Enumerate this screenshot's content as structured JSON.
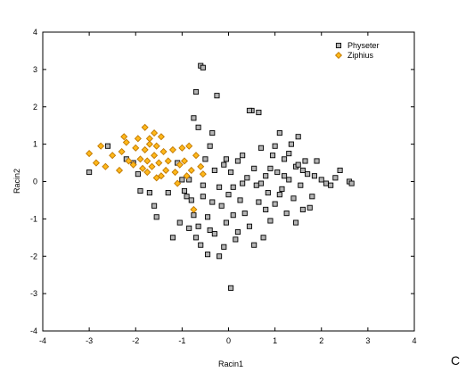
{
  "panel_letter": "C",
  "chart_data": {
    "type": "scatter",
    "xlabel": "Racin1",
    "ylabel": "Racin2",
    "xlim": [
      -4,
      4
    ],
    "ylim": [
      -4,
      4
    ],
    "xticks": [
      "-4",
      "-3",
      "-2",
      "-1",
      "0",
      "1",
      "2",
      "3",
      "4"
    ],
    "yticks": [
      "-4",
      "-3",
      "-2",
      "-1",
      "0",
      "1",
      "2",
      "3",
      "4"
    ],
    "grid": false,
    "legend_position": "top-right",
    "series": [
      {
        "name": "Physeter",
        "marker": "square",
        "fill": "#b4b4b4",
        "stroke": "#000000",
        "points": [
          [
            -3.0,
            0.25
          ],
          [
            -2.6,
            0.95
          ],
          [
            -2.2,
            0.6
          ],
          [
            -2.05,
            0.5
          ],
          [
            -1.95,
            0.2
          ],
          [
            -1.9,
            -0.25
          ],
          [
            -1.7,
            -0.3
          ],
          [
            -1.6,
            -0.65
          ],
          [
            -1.55,
            -0.95
          ],
          [
            -1.3,
            -0.3
          ],
          [
            -1.2,
            -1.5
          ],
          [
            -1.1,
            0.5
          ],
          [
            -1.0,
            0.05
          ],
          [
            -0.9,
            -0.4
          ],
          [
            -0.85,
            -1.25
          ],
          [
            -0.8,
            -0.5
          ],
          [
            -0.75,
            1.7
          ],
          [
            -0.75,
            -0.9
          ],
          [
            -0.7,
            2.4
          ],
          [
            -0.7,
            -1.5
          ],
          [
            -0.65,
            1.45
          ],
          [
            -0.6,
            -1.7
          ],
          [
            -0.55,
            -0.4
          ],
          [
            -0.5,
            0.6
          ],
          [
            -0.45,
            -0.95
          ],
          [
            -0.4,
            0.95
          ],
          [
            -0.4,
            -1.3
          ],
          [
            -0.35,
            1.3
          ],
          [
            -0.3,
            0.3
          ],
          [
            -0.3,
            -1.4
          ],
          [
            -0.25,
            2.3
          ],
          [
            -0.2,
            -2.0
          ],
          [
            -0.15,
            -0.65
          ],
          [
            -0.1,
            0.45
          ],
          [
            -0.1,
            -1.75
          ],
          [
            -0.05,
            -1.1
          ],
          [
            0.0,
            -0.35
          ],
          [
            0.05,
            0.25
          ],
          [
            0.1,
            -0.15
          ],
          [
            0.15,
            -1.55
          ],
          [
            0.2,
            0.55
          ],
          [
            0.25,
            -0.5
          ],
          [
            0.3,
            -0.05
          ],
          [
            0.35,
            -0.85
          ],
          [
            0.4,
            0.1
          ],
          [
            0.45,
            -1.2
          ],
          [
            0.5,
            1.9
          ],
          [
            0.55,
            0.35
          ],
          [
            0.6,
            -0.1
          ],
          [
            0.65,
            -0.55
          ],
          [
            0.7,
            0.9
          ],
          [
            0.75,
            -1.5
          ],
          [
            0.8,
            0.15
          ],
          [
            0.85,
            -0.3
          ],
          [
            0.9,
            -1.05
          ],
          [
            0.95,
            0.7
          ],
          [
            1.0,
            -0.6
          ],
          [
            1.05,
            0.25
          ],
          [
            1.1,
            1.3
          ],
          [
            1.15,
            -0.2
          ],
          [
            1.2,
            0.6
          ],
          [
            1.25,
            -0.85
          ],
          [
            1.3,
            0.05
          ],
          [
            1.35,
            1.0
          ],
          [
            1.4,
            -0.45
          ],
          [
            1.45,
            0.4
          ],
          [
            1.5,
            1.2
          ],
          [
            1.55,
            -0.1
          ],
          [
            1.6,
            -0.75
          ],
          [
            1.65,
            0.55
          ],
          [
            1.7,
            0.2
          ],
          [
            1.75,
            -0.7
          ],
          [
            1.8,
            -0.4
          ],
          [
            1.85,
            0.15
          ],
          [
            1.9,
            0.55
          ],
          [
            2.0,
            0.05
          ],
          [
            2.1,
            -0.05
          ],
          [
            2.2,
            -0.1
          ],
          [
            2.3,
            0.1
          ],
          [
            2.4,
            0.3
          ],
          [
            2.6,
            0.0
          ],
          [
            2.65,
            -0.05
          ],
          [
            -0.6,
            3.1
          ],
          [
            -0.55,
            3.05
          ],
          [
            0.05,
            -2.85
          ],
          [
            -1.05,
            -1.1
          ],
          [
            -0.95,
            -0.25
          ],
          [
            -0.65,
            -1.2
          ],
          [
            -0.45,
            -1.95
          ],
          [
            -0.35,
            -0.55
          ],
          [
            -0.2,
            -0.15
          ],
          [
            0.1,
            -0.9
          ],
          [
            0.3,
            0.7
          ],
          [
            0.55,
            -1.7
          ],
          [
            0.7,
            -0.05
          ],
          [
            0.9,
            0.35
          ],
          [
            1.1,
            -0.35
          ],
          [
            1.3,
            0.75
          ],
          [
            1.45,
            -1.1
          ],
          [
            1.6,
            0.3
          ],
          [
            -0.85,
            0.05
          ],
          [
            -0.55,
            -0.1
          ],
          [
            -0.05,
            0.6
          ],
          [
            0.2,
            -1.35
          ],
          [
            0.45,
            1.9
          ],
          [
            0.65,
            1.85
          ],
          [
            0.8,
            -0.75
          ],
          [
            1.0,
            0.95
          ],
          [
            1.2,
            0.15
          ],
          [
            1.5,
            0.45
          ]
        ]
      },
      {
        "name": "Ziphius",
        "marker": "diamond",
        "fill": "#ffb81a",
        "stroke": "#c07800",
        "points": [
          [
            -3.0,
            0.75
          ],
          [
            -2.85,
            0.5
          ],
          [
            -2.75,
            0.95
          ],
          [
            -2.65,
            0.4
          ],
          [
            -2.5,
            0.7
          ],
          [
            -2.35,
            0.3
          ],
          [
            -2.3,
            0.8
          ],
          [
            -2.2,
            1.05
          ],
          [
            -2.15,
            0.55
          ],
          [
            -2.05,
            0.45
          ],
          [
            -2.0,
            0.9
          ],
          [
            -1.95,
            1.15
          ],
          [
            -1.9,
            0.6
          ],
          [
            -1.85,
            0.35
          ],
          [
            -1.8,
            0.85
          ],
          [
            -1.75,
            0.55
          ],
          [
            -1.7,
            1.0
          ],
          [
            -1.65,
            0.4
          ],
          [
            -1.6,
            0.7
          ],
          [
            -1.55,
            0.95
          ],
          [
            -1.5,
            0.5
          ],
          [
            -1.45,
            0.15
          ],
          [
            -1.45,
            1.2
          ],
          [
            -1.4,
            0.8
          ],
          [
            -1.35,
            0.3
          ],
          [
            -1.3,
            0.55
          ],
          [
            -1.2,
            0.85
          ],
          [
            -1.15,
            0.25
          ],
          [
            -1.1,
            -0.05
          ],
          [
            -1.05,
            0.45
          ],
          [
            -1.0,
            0.9
          ],
          [
            -0.95,
            0.55
          ],
          [
            -0.9,
            0.15
          ],
          [
            -0.85,
            0.95
          ],
          [
            -0.8,
            0.3
          ],
          [
            -0.75,
            -0.75
          ],
          [
            -0.7,
            0.7
          ],
          [
            -0.6,
            0.4
          ],
          [
            -0.55,
            0.2
          ],
          [
            -2.25,
            1.2
          ],
          [
            -1.8,
            1.45
          ],
          [
            -1.7,
            1.15
          ],
          [
            -1.6,
            1.3
          ],
          [
            -1.75,
            0.25
          ],
          [
            -1.55,
            0.1
          ]
        ]
      }
    ]
  }
}
